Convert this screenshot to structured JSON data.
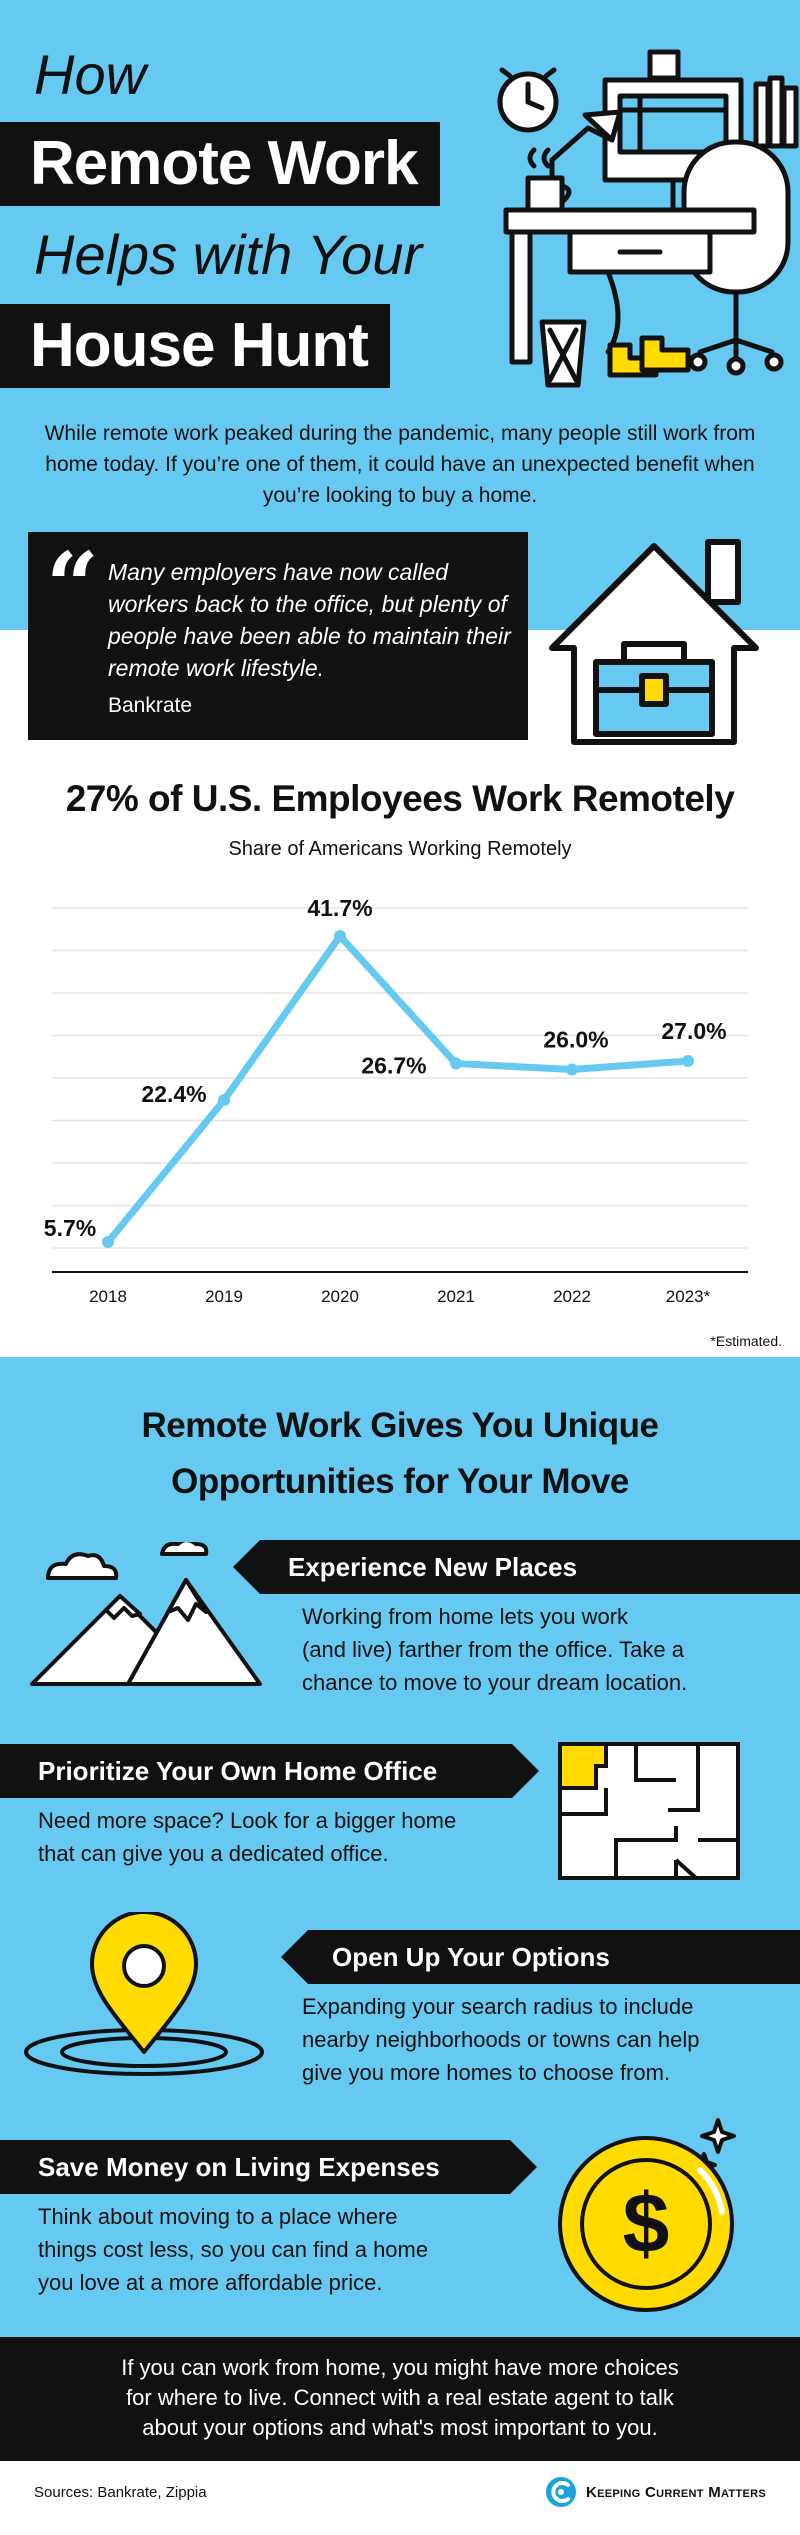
{
  "header": {
    "line1": "How",
    "line2": "Remote Work",
    "line3": "Helps with Your",
    "line4": "House Hunt"
  },
  "intro": {
    "text": "While remote work peaked during the pandemic, many people still work from home today. If you’re one of them, it could have an unexpected benefit when you’re looking to buy a home."
  },
  "quote": {
    "mark": "“",
    "text": "Many employers have now called workers back to the office, but plenty of people have been able to maintain their remote work lifestyle.",
    "source": "Bankrate"
  },
  "chart_data": {
    "type": "line",
    "title": "27% of U.S. Employees Work Remotely",
    "subtitle": "Share of Americans Working Remotely",
    "categories": [
      "2018",
      "2019",
      "2020",
      "2021",
      "2022",
      "2023*"
    ],
    "values": [
      5.7,
      22.4,
      41.7,
      26.7,
      26.0,
      27.0
    ],
    "data_labels": [
      "5.7%",
      "22.4%",
      "41.7%",
      "26.7%",
      "26.0%",
      "27.0%"
    ],
    "ylim": [
      5,
      45
    ],
    "grid": true,
    "line_color": "#66c9f2",
    "footnote": "*Estimated."
  },
  "opportunities": {
    "title_line1": "Remote Work Gives You Unique",
    "title_line2": "Opportunities for Your Move",
    "items": [
      {
        "heading": "Experience New Places",
        "body_lines": [
          "Working from home lets you work",
          "(and live) farther from the office. Take a",
          "chance to move to your dream location."
        ],
        "icon": "mountains-icon"
      },
      {
        "heading": "Prioritize Your Own Home Office",
        "body_lines": [
          "Need more space? Look for a bigger home",
          "that can give you a dedicated office."
        ],
        "icon": "floor-plan-icon"
      },
      {
        "heading": "Open Up Your Options",
        "body_lines": [
          "Expanding your search radius to include",
          "nearby neighborhoods or towns can help",
          "give you more homes to choose from."
        ],
        "icon": "map-pin-icon"
      },
      {
        "heading": "Save Money on Living Expenses",
        "body_lines": [
          "Think about moving to a place where",
          "things cost less, so you can find a home",
          "you love at a more affordable price."
        ],
        "icon": "dollar-coin-icon"
      }
    ]
  },
  "closing": {
    "lines": [
      "If you can work from home, you might have more choices",
      "for where to live. Connect with a real estate agent to talk",
      "about your options and what's most important to you."
    ]
  },
  "footer": {
    "sources": "Sources: Bankrate, Zippia",
    "brand": "Keeping Current Matters"
  },
  "colors": {
    "accent_blue": "#66c9f2",
    "black": "#111111",
    "yellow": "#ffdb00"
  }
}
